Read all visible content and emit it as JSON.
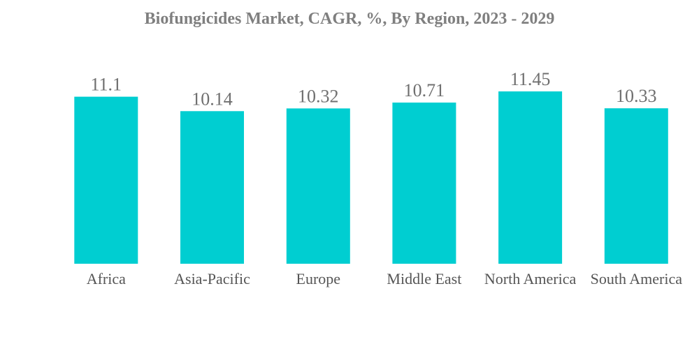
{
  "chart_data": {
    "type": "bar",
    "title": "Biofungicides Market, CAGR, %, By Region, 2023 - 2029",
    "categories": [
      "Africa",
      "Asia-Pacific",
      "Europe",
      "Middle East",
      "North America",
      "South America"
    ],
    "values": [
      11.1,
      10.14,
      10.32,
      10.71,
      11.45,
      10.33
    ],
    "value_labels": [
      "11.1",
      "10.14",
      "10.32",
      "10.71",
      "11.45",
      "10.33"
    ],
    "xlabel": "",
    "ylabel": "",
    "ylim": [
      0,
      11.45
    ],
    "grid": false,
    "legend": "none",
    "bar_color": "#00CED1"
  }
}
